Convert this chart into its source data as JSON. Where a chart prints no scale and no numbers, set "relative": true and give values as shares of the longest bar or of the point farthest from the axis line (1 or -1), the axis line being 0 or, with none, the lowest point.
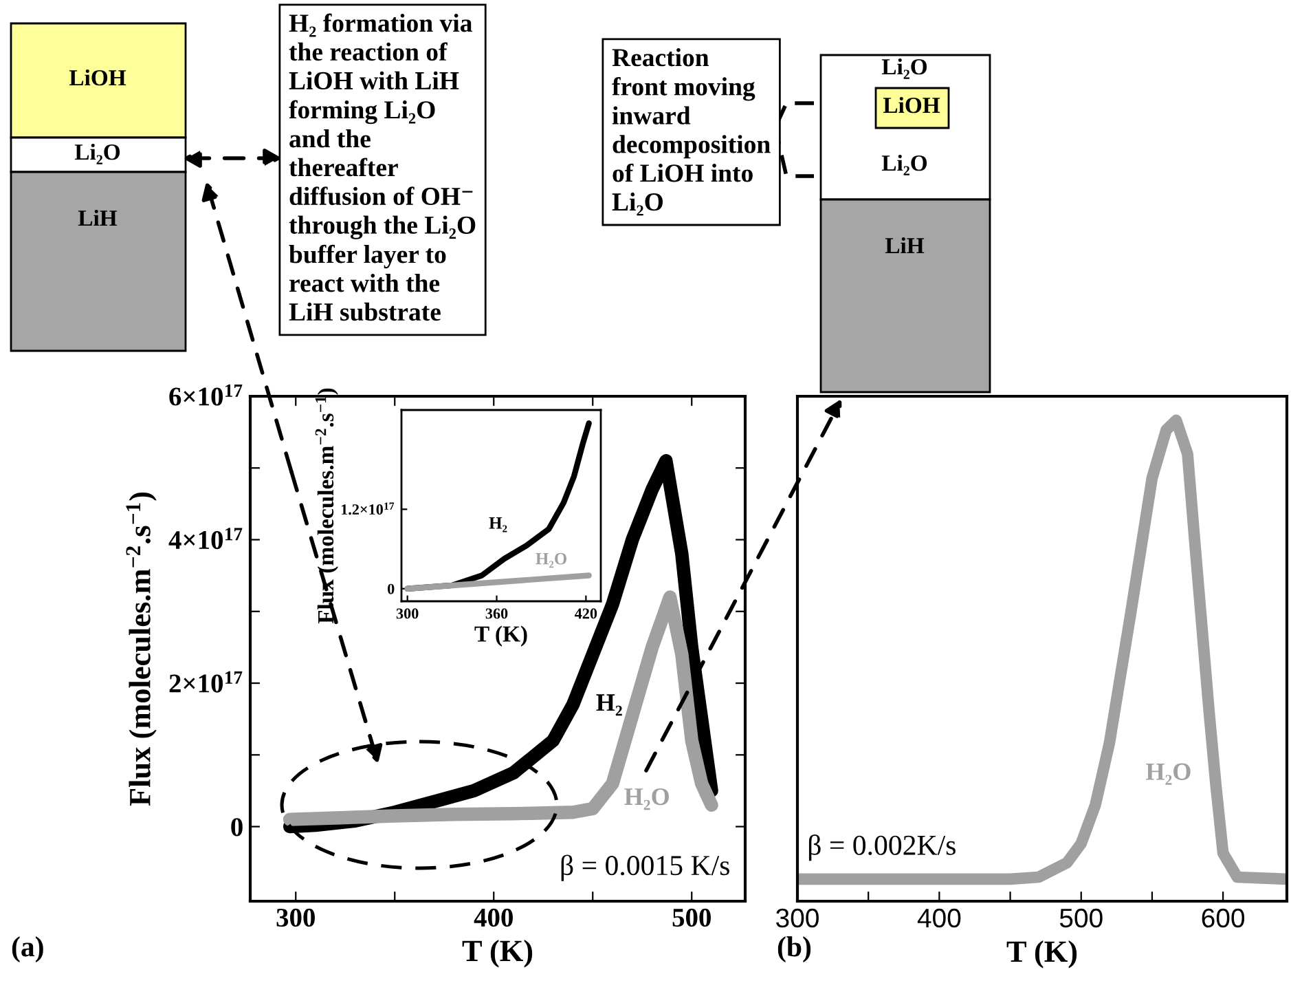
{
  "chart_data": [
    {
      "type": "line",
      "xlabel": "T (K)",
      "ylabel": "Flux (molecules.m$^{−2}$.s$^{−1}$)",
      "xlim": [
        277,
        527
      ],
      "ylim": [
        -1.04e+17,
        6e+17
      ],
      "xticks": [
        300,
        {
          "value": 350,
          "label": null
        },
        400,
        {
          "value": 450,
          "label": null
        },
        500
      ],
      "yticks": [
        0,
        {
          "value": 1e+17,
          "label": null
        },
        {
          "value": 2e+17,
          "label": "2×10$^{17}$"
        },
        {
          "value": 3e+17,
          "label": null
        },
        {
          "value": 4e+17,
          "label": "4×10$^{17}$"
        },
        {
          "value": 5e+17,
          "label": null
        },
        {
          "value": 6e+17,
          "label": "6×10$^{17}$"
        }
      ],
      "series": [
        {
          "name": "H₂",
          "color": "#000000",
          "x": [
            297,
            310,
            330,
            350,
            370,
            390,
            410,
            430,
            440,
            450,
            460,
            470,
            480,
            487,
            495,
            500,
            505,
            510
          ],
          "values": [
            0,
            2000000000000000.0,
            8000000000000000.0,
            2e+16,
            3.5e+16,
            5e+16,
            7.5e+16,
            1.2e+17,
            1.7e+17,
            2.4e+17,
            3.1e+17,
            4e+17,
            4.7e+17,
            5.1e+17,
            3.8e+17,
            2.5e+17,
            1.5e+17,
            5e+16
          ]
        },
        {
          "name": "H₂O",
          "color": "#a0a0a0",
          "x": [
            297,
            320,
            350,
            380,
            410,
            440,
            450,
            460,
            470,
            480,
            489,
            495,
            500,
            505,
            510
          ],
          "values": [
            1e+16,
            1.2e+16,
            1.5e+16,
            1.7e+16,
            1.8e+16,
            2e+16,
            2.5e+16,
            6e+16,
            1.55e+17,
            2.5e+17,
            3.2e+17,
            2.4e+17,
            1.2e+17,
            6e+16,
            3e+16
          ]
        }
      ],
      "annotations": [
        "β = 0.0015 K/s",
        "(a)"
      ],
      "legend": false,
      "grid": false,
      "marker": "none",
      "line_style": "solid"
    },
    {
      "type": "line",
      "xlabel": "T (K)",
      "ylabel": "Flux (molecules.m$^{−2}$.s$^{−1}$)",
      "xlim": [
        296,
        430
      ],
      "ylim": [
        -1.9e+16,
        2.7e+17
      ],
      "xticks": [
        300,
        360,
        420
      ],
      "yticks": [
        0,
        {
          "value": 1.2e+17,
          "label": "1.2×10$^{17}$"
        }
      ],
      "series": [
        {
          "name": "H₂",
          "color": "#000000",
          "x": [
            300,
            330,
            350,
            365,
            380,
            395,
            405,
            412,
            418,
            422
          ],
          "values": [
            0,
            5000000000000000.0,
            2e+16,
            4.5e+16,
            6.5e+16,
            9e+16,
            1.3e+17,
            1.7e+17,
            2.2e+17,
            2.5e+17
          ]
        },
        {
          "name": "H₂O",
          "color": "#a0a0a0",
          "x": [
            300,
            422
          ],
          "values": [
            0,
            2e+16
          ]
        }
      ],
      "legend": false,
      "grid": false,
      "marker": "none",
      "line_style": "solid"
    },
    {
      "type": "line",
      "xlabel": "T (K)",
      "relative": true,
      "tick_labels": "x",
      "xlim": [
        300,
        645
      ],
      "xticks": [
        300,
        {
          "value": 350,
          "label": null
        },
        400,
        {
          "value": 450,
          "label": null
        },
        500,
        {
          "value": 550,
          "label": null
        },
        600
      ],
      "series": [
        {
          "name": "H₂O",
          "color": "#a0a0a0",
          "x": [
            300,
            450,
            470,
            490,
            500,
            510,
            520,
            535,
            550,
            560,
            567,
            575,
            580,
            590,
            595,
            600,
            610,
            645
          ],
          "values": [
            0.046,
            0.046,
            0.05,
            0.08,
            0.12,
            0.2,
            0.33,
            0.6,
            0.88,
            0.98,
            1,
            0.93,
            0.75,
            0.4,
            0.24,
            0.1,
            0.05,
            0.046
          ]
        }
      ],
      "annotations": [
        "β = 0.002K/s",
        "(b)"
      ],
      "legend": false,
      "grid": false,
      "marker": "none",
      "line_style": "solid"
    },
    {
      "type": "other",
      "annotations": [
        "H₂ formation via\nthe reaction of\nLiOH with LiH\nforming Li₂O\nand the\nthereafter\ndiffusion of OH⁻\nthrough the Li₂O\nbuffer layer to\nreact with the\nLiH substrate",
        "Reaction\nfront moving\ninward\ndecomposition\nof LiOH into\nLi₂O",
        "LiOH",
        "Li₂O",
        "LiH",
        "Li₂O",
        "LiOH",
        "Li₂O",
        "LiH"
      ]
    }
  ]
}
